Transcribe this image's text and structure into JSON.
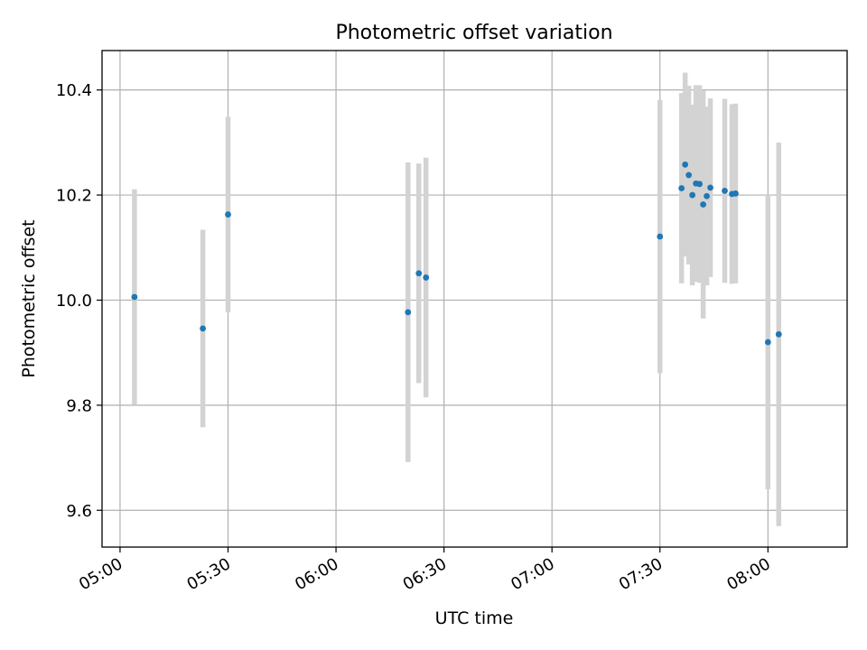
{
  "chart_data": {
    "type": "scatter",
    "title": "Photometric offset variation",
    "xlabel": "UTC time",
    "ylabel": "Photometric offset",
    "xlim": [
      "04:55",
      "08:22"
    ],
    "ylim": [
      9.53,
      10.475
    ],
    "x_ticks": [
      "05:00",
      "05:30",
      "06:00",
      "06:30",
      "07:00",
      "07:30",
      "08:00"
    ],
    "y_ticks": [
      9.6,
      9.8,
      10.0,
      10.2,
      10.4
    ],
    "y_tick_labels": [
      "9.6",
      "9.8",
      "10.0",
      "10.2",
      "10.4"
    ],
    "grid": true,
    "colors": {
      "point": "#1f77b4",
      "errorbar": "#d3d3d3",
      "grid": "#b0b0b0"
    },
    "points": [
      {
        "time": "05:04",
        "value": 10.006,
        "err": 0.205
      },
      {
        "time": "05:23",
        "value": 9.946,
        "err": 0.188
      },
      {
        "time": "05:30",
        "value": 10.163,
        "err": 0.186
      },
      {
        "time": "06:20",
        "value": 9.977,
        "err": 0.285
      },
      {
        "time": "06:23",
        "value": 10.051,
        "err": 0.209
      },
      {
        "time": "06:25",
        "value": 10.043,
        "err": 0.228
      },
      {
        "time": "07:30",
        "value": 10.121,
        "err": 0.26
      },
      {
        "time": "07:36",
        "value": 10.213,
        "err": 0.181
      },
      {
        "time": "07:37",
        "value": 10.258,
        "err": 0.175
      },
      {
        "time": "07:38",
        "value": 10.238,
        "err": 0.17
      },
      {
        "time": "07:39",
        "value": 10.2,
        "err": 0.172
      },
      {
        "time": "07:40",
        "value": 10.222,
        "err": 0.187
      },
      {
        "time": "07:41",
        "value": 10.221,
        "err": 0.188
      },
      {
        "time": "07:42",
        "value": 10.182,
        "err": 0.217
      },
      {
        "time": "07:43",
        "value": 10.198,
        "err": 0.17
      },
      {
        "time": "07:44",
        "value": 10.214,
        "err": 0.17
      },
      {
        "time": "07:48",
        "value": 10.208,
        "err": 0.175
      },
      {
        "time": "07:50",
        "value": 10.202,
        "err": 0.171
      },
      {
        "time": "07:51",
        "value": 10.203,
        "err": 0.171
      },
      {
        "time": "08:00",
        "value": 9.92,
        "err": 0.28
      },
      {
        "time": "08:03",
        "value": 9.935,
        "err": 0.365
      }
    ]
  }
}
